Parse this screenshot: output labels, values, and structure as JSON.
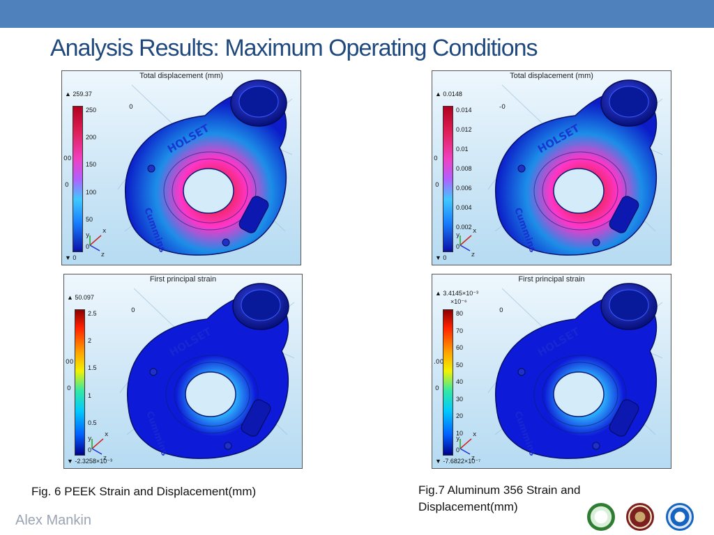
{
  "slide": {
    "title": "Analysis Results: Maximum Operating Conditions",
    "author": "Alex Mankin",
    "accent_color": "#4f81bd",
    "title_color": "#1f497d"
  },
  "captions": {
    "fig6": "Fig. 6 PEEK Strain and Displacement(mm)",
    "fig7": "Fig.7 Aluminum 356 Strain and Displacement(mm)"
  },
  "panels": [
    {
      "id": "peek-displacement",
      "title": "Total displacement (mm)",
      "max_label": "▲ 259.37",
      "min_label": "▼ 0",
      "colormap": "rainbow-magenta",
      "ticks": [
        "250",
        "200",
        "150",
        "100",
        "50",
        "0"
      ],
      "embossed_text": [
        "HOLSET",
        "Cummins"
      ],
      "edge_labels": [
        "00",
        "0",
        "0"
      ],
      "axis_labels": [
        "y",
        "x",
        "z"
      ]
    },
    {
      "id": "aluminum-displacement",
      "title": "Total displacement (mm)",
      "max_label": "▲ 0.0148",
      "min_label": "▼ 0",
      "colormap": "rainbow-magenta",
      "ticks": [
        "0.014",
        "0.012",
        "0.01",
        "0.008",
        "0.006",
        "0.004",
        "0.002",
        "0"
      ],
      "embossed_text": [
        "HOLSET",
        "Cummins"
      ],
      "edge_labels": [
        "0",
        "0",
        "-0"
      ],
      "axis_labels": [
        "y",
        "x",
        "z"
      ]
    },
    {
      "id": "peek-strain",
      "title": "First principal strain",
      "max_label": "▲ 50.097",
      "min_label": "▼ -2.3258×10⁻³",
      "colormap": "jet",
      "ticks": [
        "2.5",
        "2",
        "1.5",
        "1",
        "0.5",
        "0"
      ],
      "embossed_text": [
        "HOLSET",
        "Cummins"
      ],
      "edge_labels": [
        "00",
        "0",
        "0"
      ],
      "axis_labels": [
        "y",
        "x",
        "z"
      ]
    },
    {
      "id": "aluminum-strain",
      "title": "First principal strain",
      "max_label": "▲ 3.4145×10⁻³",
      "exponent_label": "×10⁻⁶",
      "min_label": "▼ -7.6822×10⁻⁷",
      "colormap": "jet",
      "ticks": [
        "80",
        "70",
        "60",
        "50",
        "40",
        "30",
        "20",
        "10",
        "0"
      ],
      "embossed_text": [
        "HOLSET",
        "Cummins"
      ],
      "edge_labels": [
        ".00",
        "0",
        "0"
      ],
      "axis_labels": [
        "y",
        "x",
        "z"
      ]
    }
  ],
  "logos": [
    {
      "name": "university-seal-green",
      "color": "#2e7d32"
    },
    {
      "name": "university-seal-maroon",
      "color": "#7b1f1f"
    },
    {
      "name": "college-seal-blue",
      "color": "#1565c0"
    }
  ]
}
